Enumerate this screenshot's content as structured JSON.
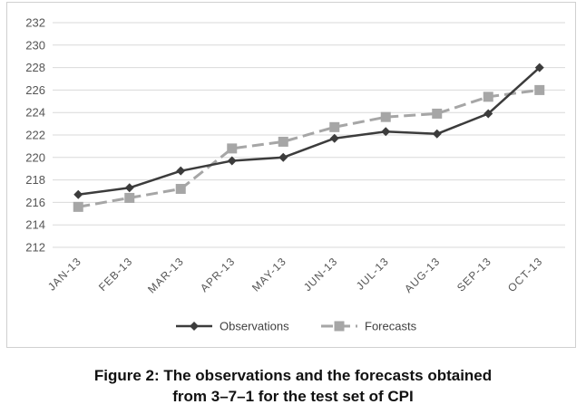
{
  "chart_data": {
    "type": "line",
    "title": "",
    "xlabel": "",
    "ylabel": "",
    "categories": [
      "JAN-13",
      "FEB-13",
      "MAR-13",
      "APR-13",
      "MAY-13",
      "JUN-13",
      "JUL-13",
      "AUG-13",
      "SEP-13",
      "OCT-13"
    ],
    "ylim": [
      212,
      232
    ],
    "yticks": [
      212,
      214,
      216,
      218,
      220,
      222,
      224,
      226,
      228,
      230,
      232
    ],
    "grid": true,
    "legend": "bottom",
    "series": [
      {
        "name": "Observations",
        "color": "#3c3c3c",
        "dash": "solid",
        "marker": "diamond",
        "values": [
          216.7,
          217.3,
          218.8,
          219.7,
          220.0,
          221.7,
          222.3,
          222.1,
          223.9,
          228.0
        ]
      },
      {
        "name": "Forecasts",
        "color": "#a6a6a6",
        "dash": "dashed",
        "marker": "square",
        "values": [
          215.6,
          216.4,
          217.2,
          220.8,
          221.4,
          222.7,
          223.6,
          223.9,
          225.4,
          226.0
        ]
      }
    ]
  },
  "caption": {
    "line1": "Figure 2: The observations and the forecasts obtained",
    "line2": "from 3–7–1 for the test set of CPI"
  }
}
